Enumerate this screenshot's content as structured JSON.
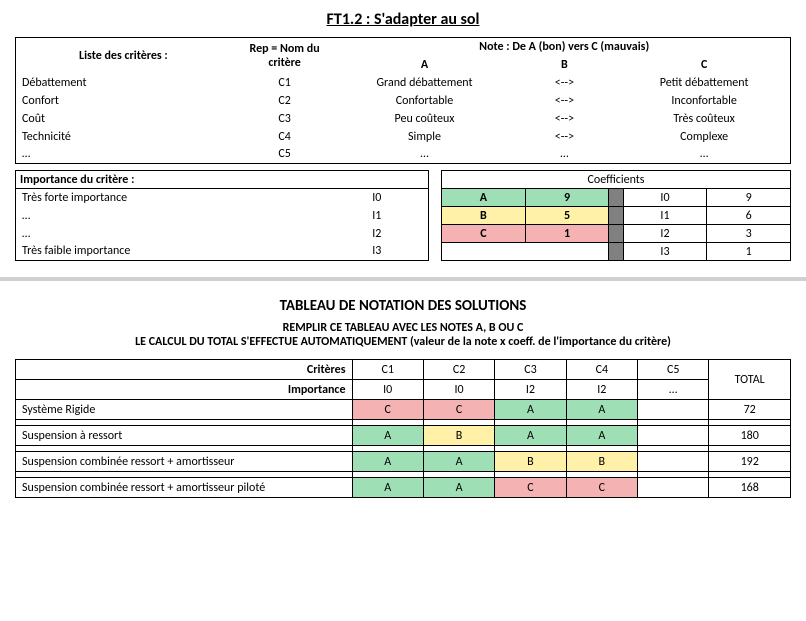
{
  "title": "FT1.2 : S'adapter au sol",
  "criteria_header": {
    "liste": "Liste des critères :",
    "rep": "Rep = Nom du critère",
    "note": "Note : De A (bon) vers C (mauvais)",
    "a": "A",
    "b": "B",
    "c": "C"
  },
  "criteria": [
    {
      "name": "Débattement",
      "rep": "C1",
      "a": "Grand débattement",
      "b": "<-->",
      "c": "Petit débattement"
    },
    {
      "name": "Confort",
      "rep": "C2",
      "a": "Confortable",
      "b": "<-->",
      "c": "Inconfortable"
    },
    {
      "name": "Coût",
      "rep": "C3",
      "a": "Peu coûteux",
      "b": "<-->",
      "c": "Très coûteux"
    },
    {
      "name": "Technicité",
      "rep": "C4",
      "a": "Simple",
      "b": "<-->",
      "c": "Complexe"
    },
    {
      "name": "…",
      "rep": "C5",
      "a": "…",
      "b": "…",
      "c": "…"
    }
  ],
  "importance": {
    "title": "Importance du critère :",
    "rows": [
      {
        "label": "Très forte importance",
        "code": "I0"
      },
      {
        "label": "…",
        "code": "I1"
      },
      {
        "label": "…",
        "code": "I2"
      },
      {
        "label": "Très faible importance",
        "code": "I3"
      }
    ]
  },
  "coeff": {
    "title": "Coefficients",
    "left": [
      {
        "k": "A",
        "v": "9",
        "cls": "g"
      },
      {
        "k": "B",
        "v": "5",
        "cls": "y"
      },
      {
        "k": "C",
        "v": "1",
        "cls": "r"
      }
    ],
    "right": [
      {
        "k": "I0",
        "v": "9"
      },
      {
        "k": "I1",
        "v": "6"
      },
      {
        "k": "I2",
        "v": "3"
      },
      {
        "k": "I3",
        "v": "1"
      }
    ]
  },
  "section2": {
    "title": "TABLEAU DE NOTATION DES SOLUTIONS",
    "instr1": "REMPLIR CE TABLEAU AVEC LES NOTES A, B OU C",
    "instr2": "LE CALCUL DU TOTAL S'EFFECTUE AUTOMATIQUEMENT (valeur de la note x coeff. de l'importance du critère)"
  },
  "solutions": {
    "crit_label": "Critères",
    "imp_label": "Importance",
    "total_label": "TOTAL",
    "crit_row": [
      "C1",
      "C2",
      "C3",
      "C4",
      "C5"
    ],
    "imp_row": [
      "I0",
      "I0",
      "I2",
      "I2",
      "…"
    ],
    "rows": [
      {
        "name": "Système Rigide",
        "cells": [
          {
            "v": "C",
            "cls": "r"
          },
          {
            "v": "C",
            "cls": "r"
          },
          {
            "v": "A",
            "cls": "g"
          },
          {
            "v": "A",
            "cls": "g"
          },
          {
            "v": "",
            "cls": ""
          }
        ],
        "total": "72"
      },
      {
        "name": "Suspension à ressort",
        "cells": [
          {
            "v": "A",
            "cls": "g"
          },
          {
            "v": "B",
            "cls": "y"
          },
          {
            "v": "A",
            "cls": "g"
          },
          {
            "v": "A",
            "cls": "g"
          },
          {
            "v": "",
            "cls": ""
          }
        ],
        "total": "180"
      },
      {
        "name": "Suspension combinée ressort + amortisseur",
        "cells": [
          {
            "v": "A",
            "cls": "g"
          },
          {
            "v": "A",
            "cls": "g"
          },
          {
            "v": "B",
            "cls": "y"
          },
          {
            "v": "B",
            "cls": "y"
          },
          {
            "v": "",
            "cls": ""
          }
        ],
        "total": "192"
      },
      {
        "name": "Suspension combinée ressort + amortisseur piloté",
        "cells": [
          {
            "v": "A",
            "cls": "g"
          },
          {
            "v": "A",
            "cls": "g"
          },
          {
            "v": "C",
            "cls": "r"
          },
          {
            "v": "C",
            "cls": "r"
          },
          {
            "v": "",
            "cls": ""
          }
        ],
        "total": "168"
      }
    ]
  }
}
